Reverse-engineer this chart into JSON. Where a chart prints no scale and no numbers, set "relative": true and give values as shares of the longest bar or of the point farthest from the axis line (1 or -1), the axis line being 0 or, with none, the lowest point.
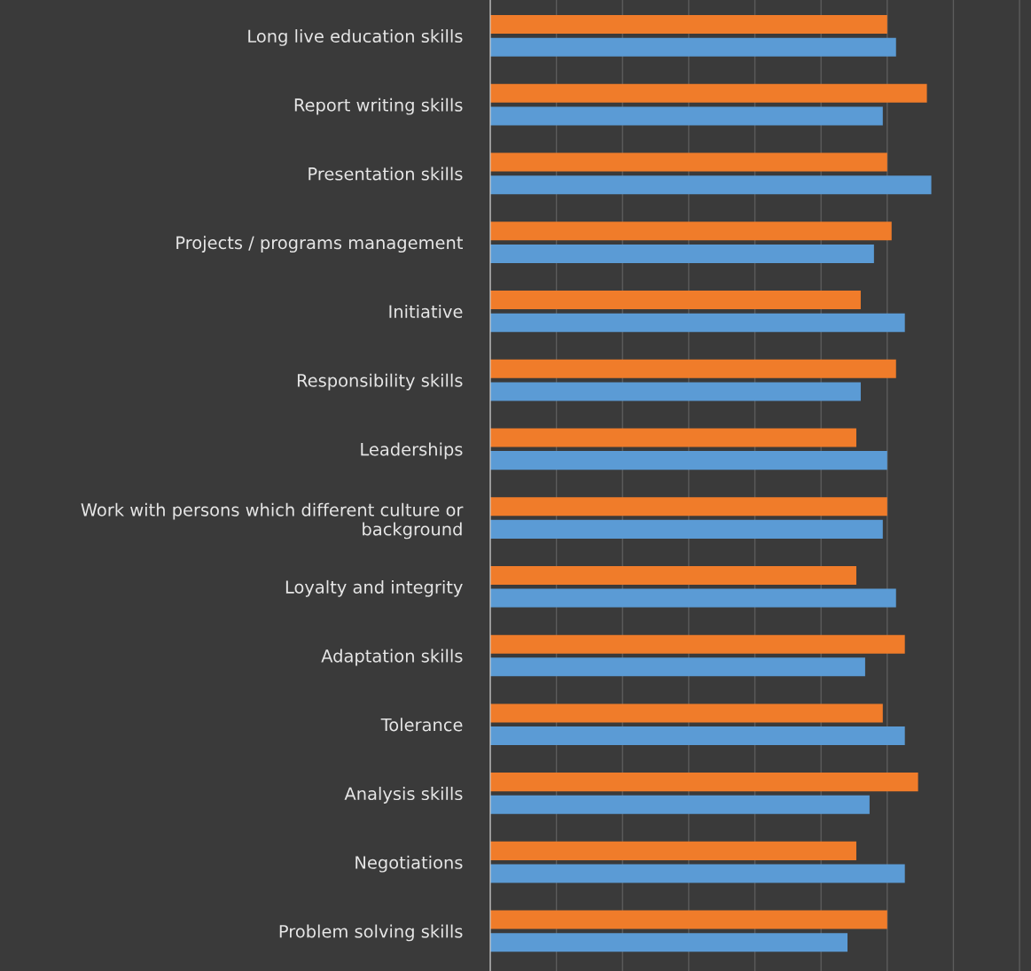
{
  "chart_data": {
    "type": "bar",
    "orientation": "horizontal",
    "relative": true,
    "grid": "x",
    "categories": [
      "Long live education skills",
      "Report writing skills",
      "Presentation skills",
      "Projects / programs management",
      "Initiative",
      "Responsibility skills",
      "Leaderships",
      "Work with persons which different culture or background",
      "Loyalty and integrity",
      "Adaptation skills",
      "Tolerance",
      "Analysis skills",
      "Negotiations",
      "Problem solving skills"
    ],
    "series": [
      {
        "color": "#f07c2a",
        "values": [
          0.9,
          0.99,
          0.9,
          0.91,
          0.84,
          0.92,
          0.83,
          0.9,
          0.83,
          0.94,
          0.89,
          0.97,
          0.83,
          0.9
        ]
      },
      {
        "color": "#5b9bd5",
        "values": [
          0.92,
          0.89,
          1.0,
          0.87,
          0.94,
          0.84,
          0.9,
          0.89,
          0.92,
          0.85,
          0.94,
          0.86,
          0.94,
          0.81
        ]
      }
    ]
  }
}
